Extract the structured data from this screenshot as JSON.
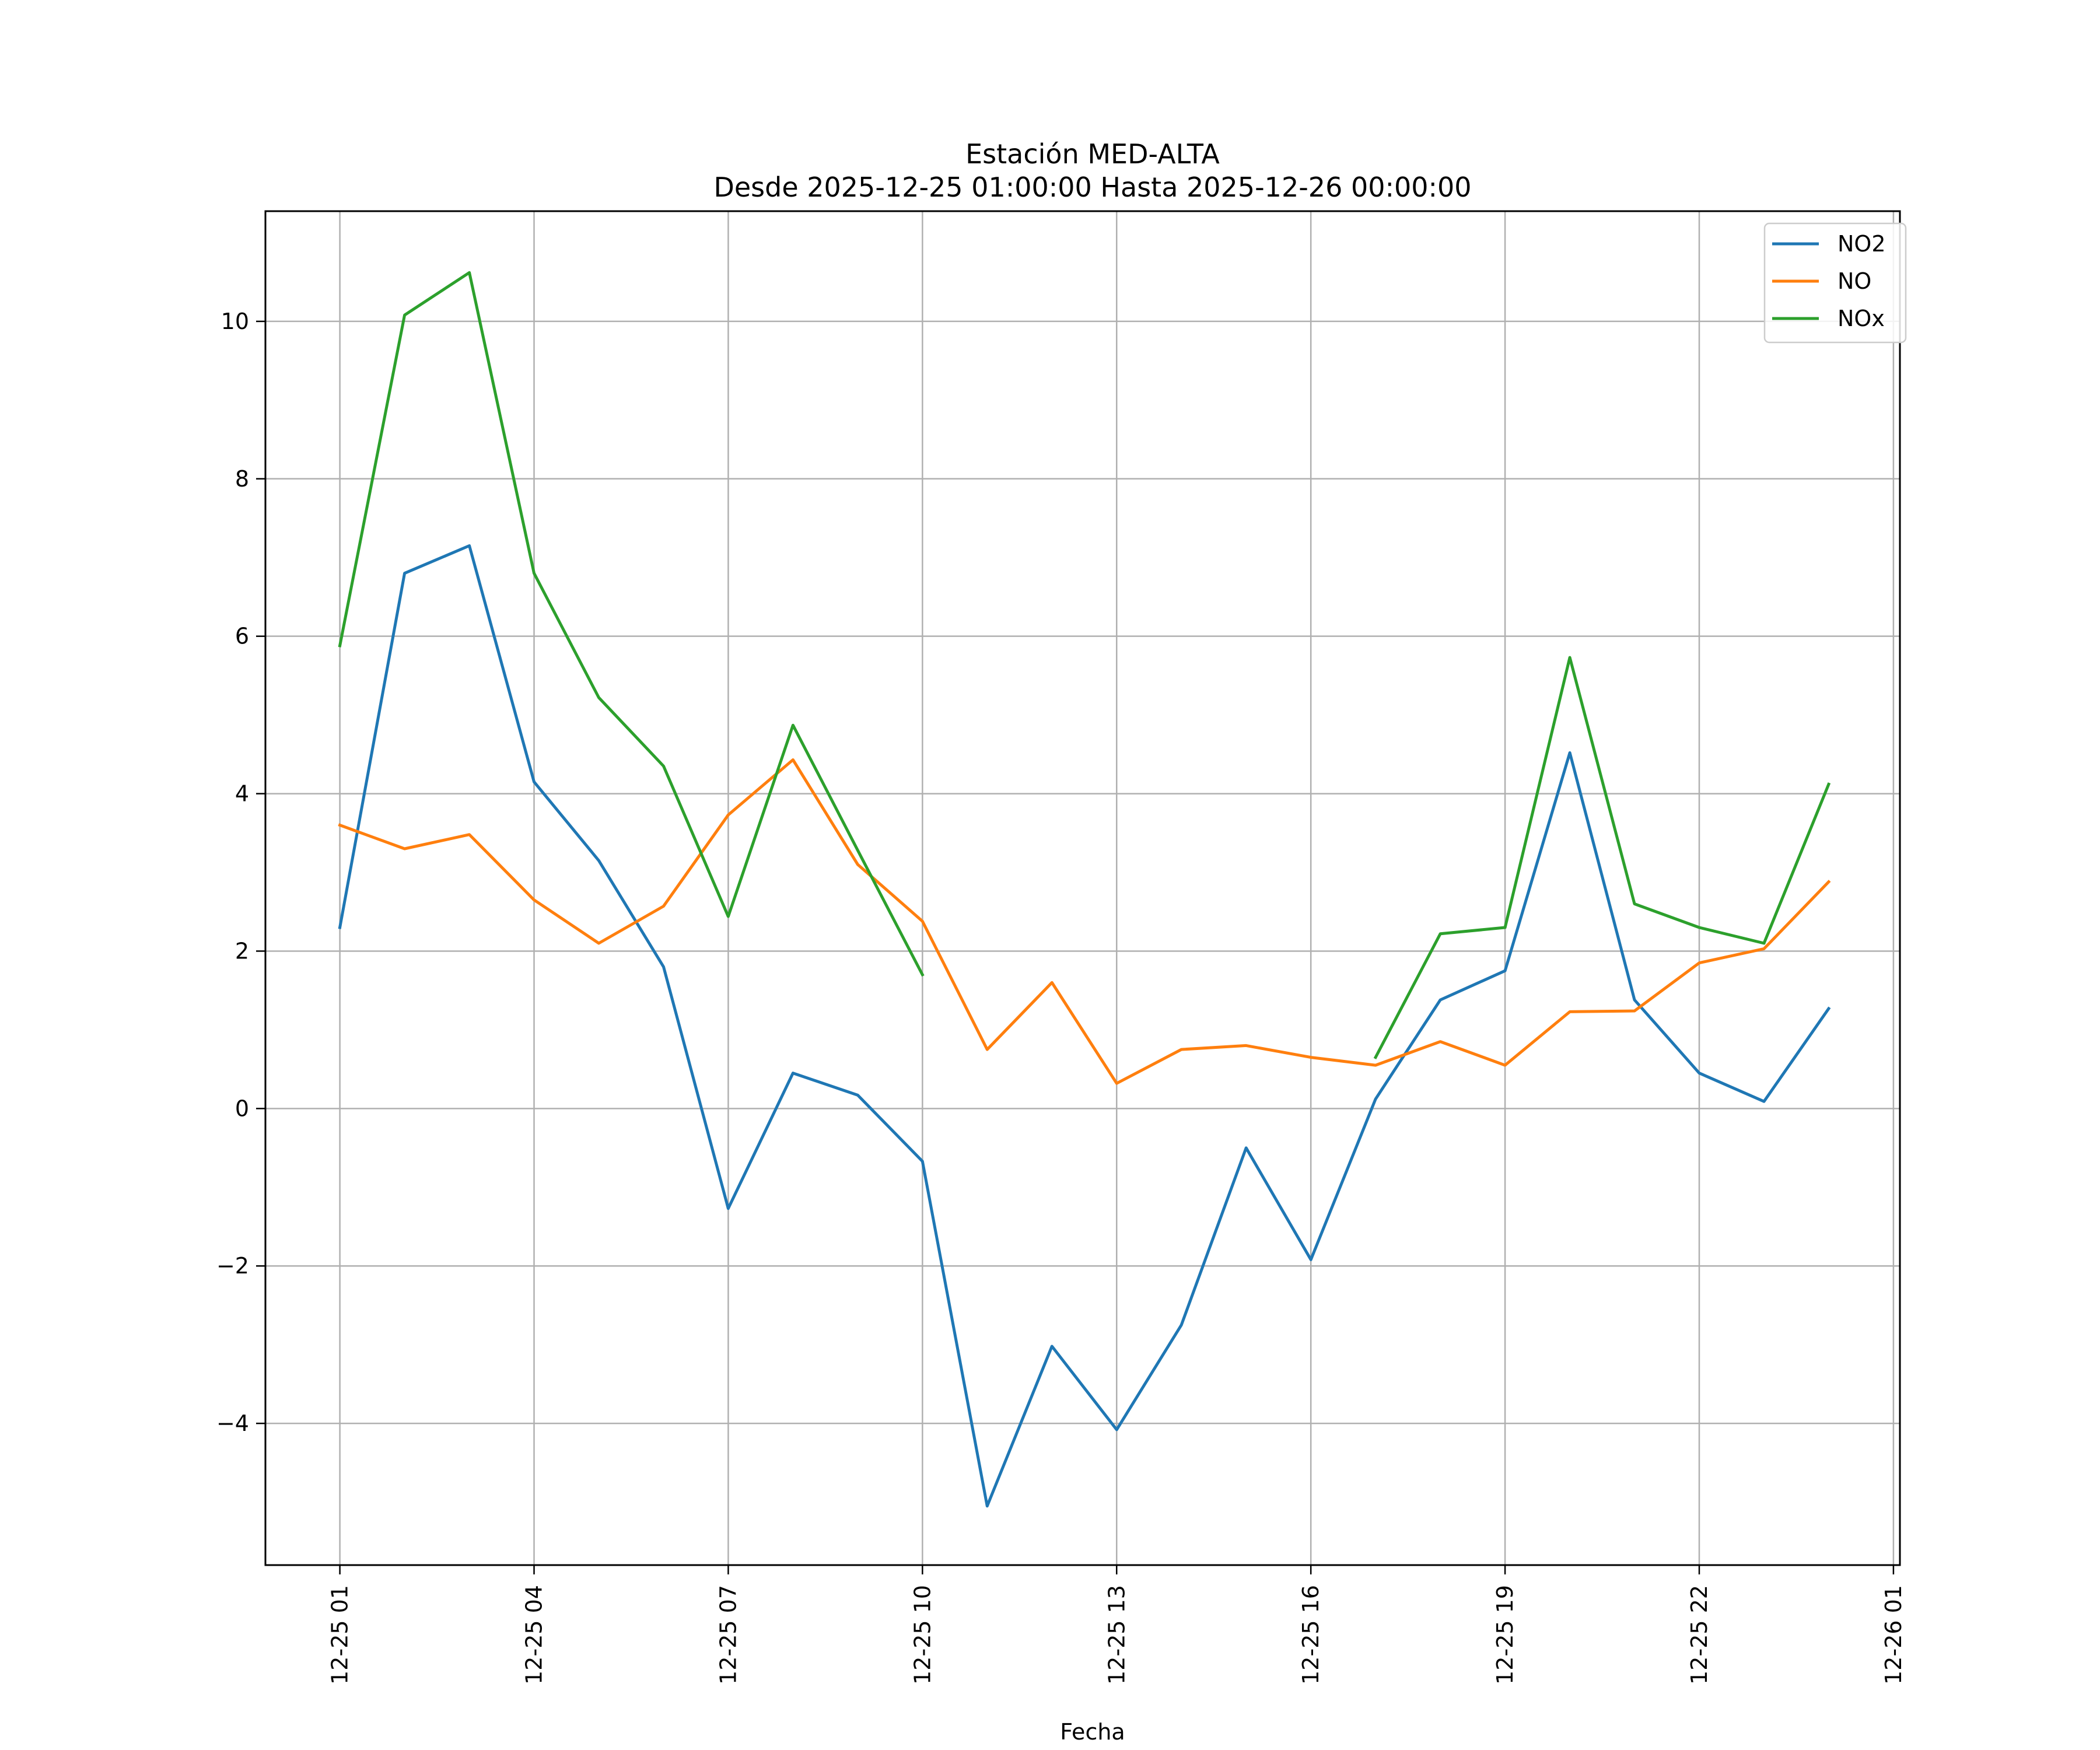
{
  "chart_data": {
    "type": "line",
    "title": "Estación MED-ALTA",
    "subtitle": "Desde 2025-12-25 01:00:00 Hasta 2025-12-26 00:00:00",
    "xlabel": "Fecha",
    "ylabel": "",
    "x_hours": [
      1,
      2,
      3,
      4,
      5,
      6,
      7,
      8,
      9,
      10,
      11,
      12,
      13,
      14,
      15,
      16,
      17,
      18,
      19,
      20,
      21,
      22,
      23,
      24
    ],
    "xticks": [
      {
        "hour": 1,
        "label": "12-25 01"
      },
      {
        "hour": 4,
        "label": "12-25 04"
      },
      {
        "hour": 7,
        "label": "12-25 07"
      },
      {
        "hour": 10,
        "label": "12-25 10"
      },
      {
        "hour": 13,
        "label": "12-25 13"
      },
      {
        "hour": 16,
        "label": "12-25 16"
      },
      {
        "hour": 19,
        "label": "12-25 19"
      },
      {
        "hour": 22,
        "label": "12-25 22"
      },
      {
        "hour": 25,
        "label": "12-26 01"
      }
    ],
    "yticks": [
      {
        "value": -4,
        "label": "−4"
      },
      {
        "value": -2,
        "label": "−2"
      },
      {
        "value": 0,
        "label": "0"
      },
      {
        "value": 2,
        "label": "2"
      },
      {
        "value": 4,
        "label": "4"
      },
      {
        "value": 6,
        "label": "6"
      },
      {
        "value": 8,
        "label": "8"
      },
      {
        "value": 10,
        "label": "10"
      }
    ],
    "xlim": [
      -0.15,
      25.1
    ],
    "ylim": [
      -5.8,
      11.4
    ],
    "grid": true,
    "legend_position": "top-right",
    "series": [
      {
        "name": "NO2",
        "color": "#1f77b4",
        "values": [
          2.3,
          6.8,
          7.15,
          4.15,
          3.15,
          1.8,
          -1.27,
          0.45,
          0.17,
          -0.67,
          -5.05,
          -3.02,
          -4.08,
          -2.75,
          -0.5,
          -1.92,
          0.12,
          1.38,
          1.75,
          4.52,
          1.38,
          0.45,
          0.09,
          1.27
        ]
      },
      {
        "name": "NO",
        "color": "#ff7f0e",
        "values": [
          3.6,
          3.3,
          3.48,
          2.65,
          2.1,
          2.57,
          3.73,
          4.43,
          3.1,
          2.38,
          0.75,
          1.6,
          0.32,
          0.75,
          0.8,
          0.65,
          0.55,
          0.85,
          0.55,
          1.23,
          1.24,
          1.85,
          2.03,
          2.88
        ]
      },
      {
        "name": "NOx",
        "color": "#2ca02c",
        "values": [
          5.88,
          10.08,
          10.62,
          6.8,
          5.22,
          4.35,
          2.44,
          4.87,
          3.28,
          1.7,
          null,
          null,
          null,
          null,
          null,
          null,
          0.65,
          2.22,
          2.3,
          5.73,
          2.6,
          2.3,
          2.1,
          4.12
        ]
      }
    ]
  }
}
